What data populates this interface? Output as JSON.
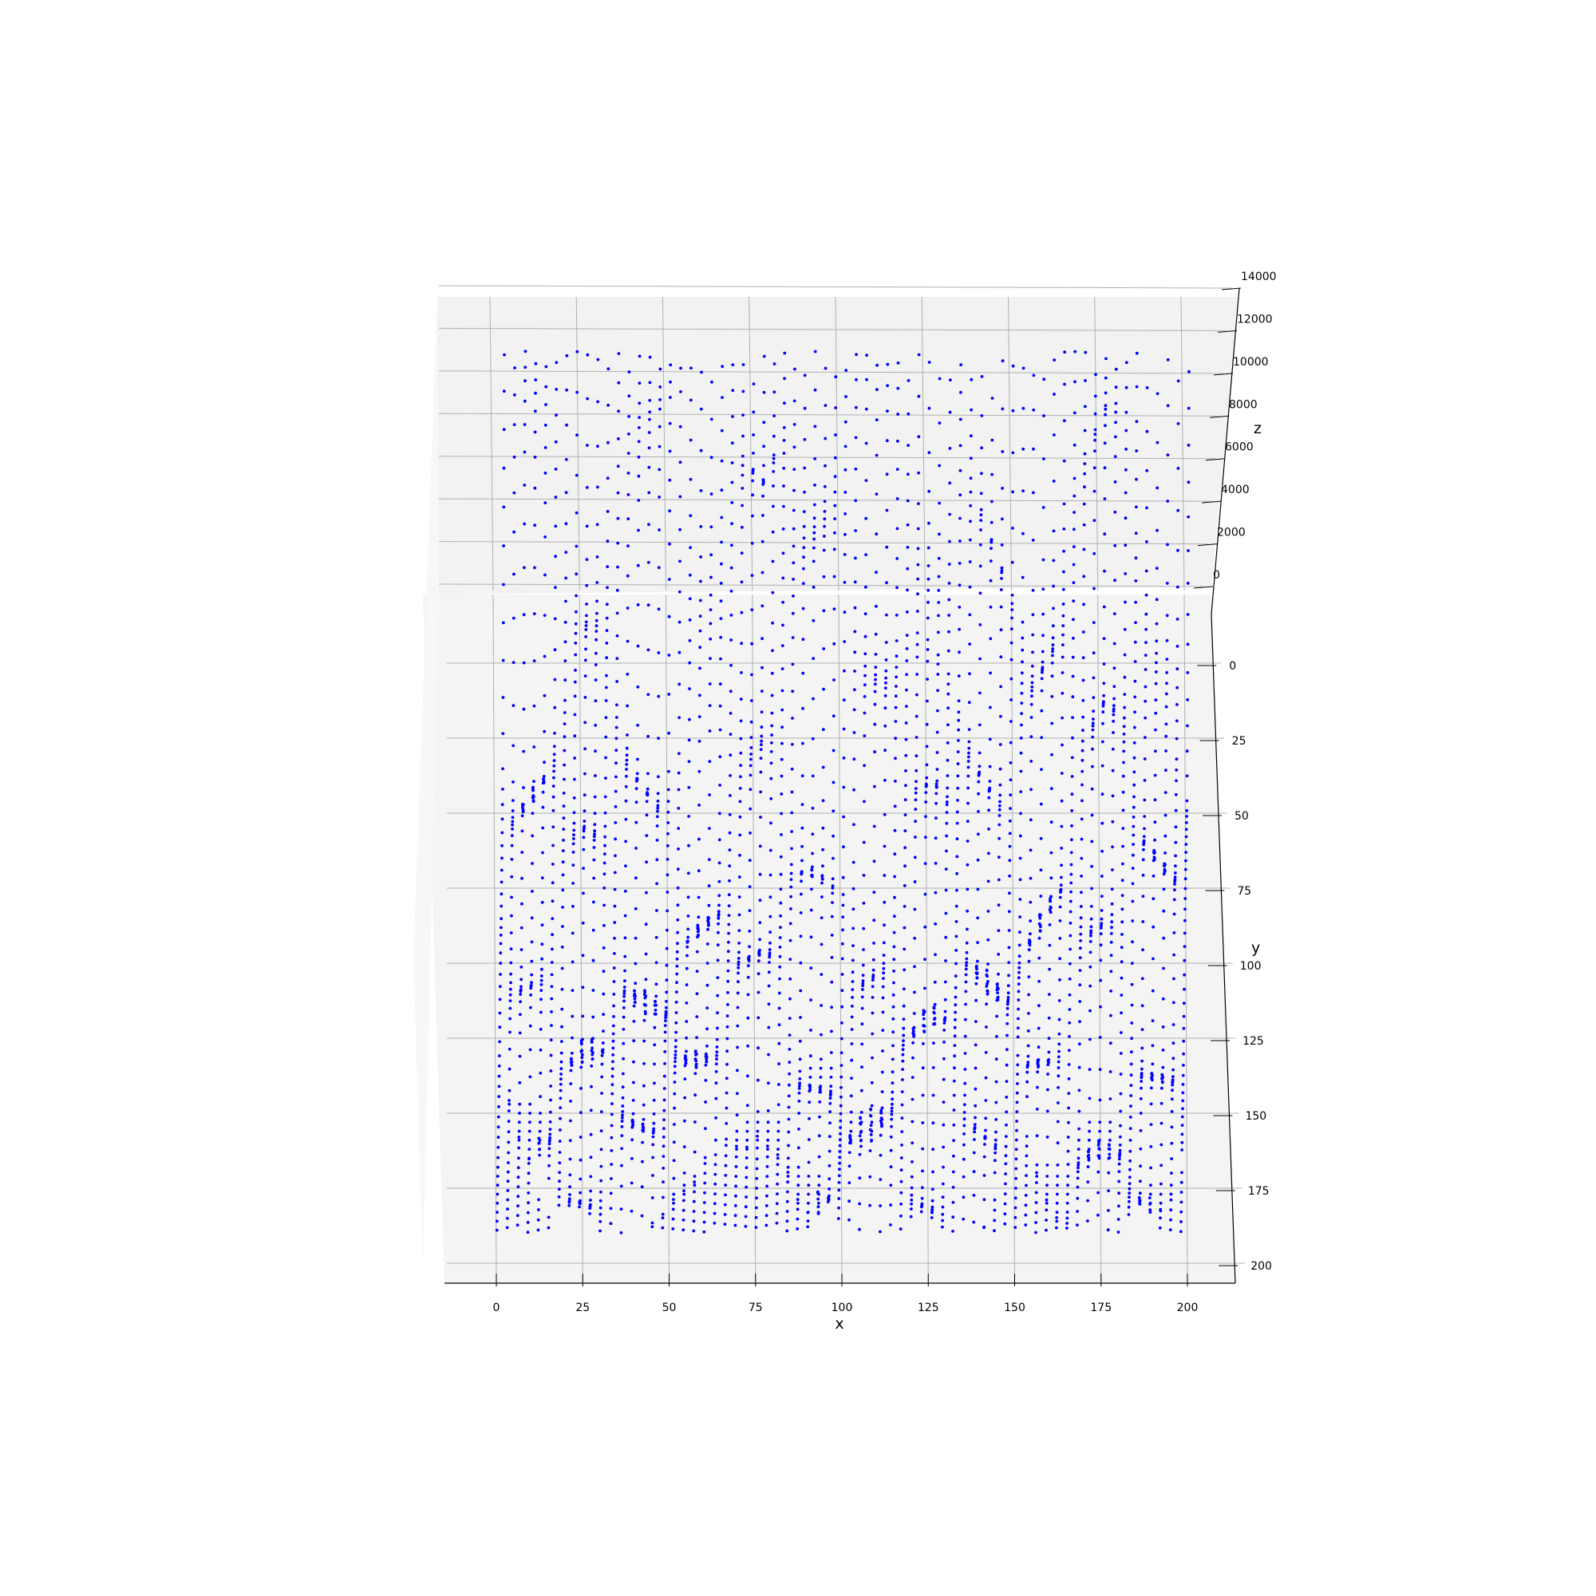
{
  "chart_data": {
    "type": "scatter3d",
    "view": "3d-projection-from-above",
    "marker": "small dots",
    "series": [
      {
        "color": "#0000ff",
        "surface_samples_z": [
          [
            12400,
            12400,
            12400,
            12400,
            12400,
            12400,
            12400,
            12400,
            12400
          ],
          [
            9000,
            7500,
            8800,
            6000,
            11000,
            9500,
            3000,
            8000,
            6500
          ],
          [
            2500,
            4000,
            1500,
            5000,
            7500,
            3500,
            2000,
            6000,
            1000
          ],
          [
            600,
            3000,
            800,
            2500,
            1200,
            4500,
            600,
            3500,
            1000
          ],
          [
            300,
            1800,
            500,
            900,
            700,
            2400,
            300,
            1500,
            1200
          ],
          [
            0,
            900,
            400,
            200,
            600,
            1200,
            200,
            800,
            300
          ],
          [
            0,
            300,
            200,
            0,
            400,
            500,
            0,
            400,
            100
          ]
        ]
      }
    ],
    "x_axis": {
      "label": "x",
      "ticks": [
        "0",
        "25",
        "50",
        "75",
        "100",
        "125",
        "150",
        "175",
        "200"
      ],
      "range": [
        -15,
        213
      ]
    },
    "y_axis": {
      "label": "y",
      "ticks": [
        "0",
        "25",
        "50",
        "75",
        "100",
        "125",
        "150",
        "175",
        "200"
      ],
      "range": [
        -15,
        213
      ]
    },
    "z_axis": {
      "label": "z",
      "ticks": [
        "0",
        "2000",
        "4000",
        "6000",
        "8000",
        "10000",
        "12000",
        "14000"
      ],
      "range": [
        0,
        14000
      ]
    },
    "grid": true,
    "pane_color": "#f2f2f2",
    "grid_color": "#b0b0b0"
  }
}
